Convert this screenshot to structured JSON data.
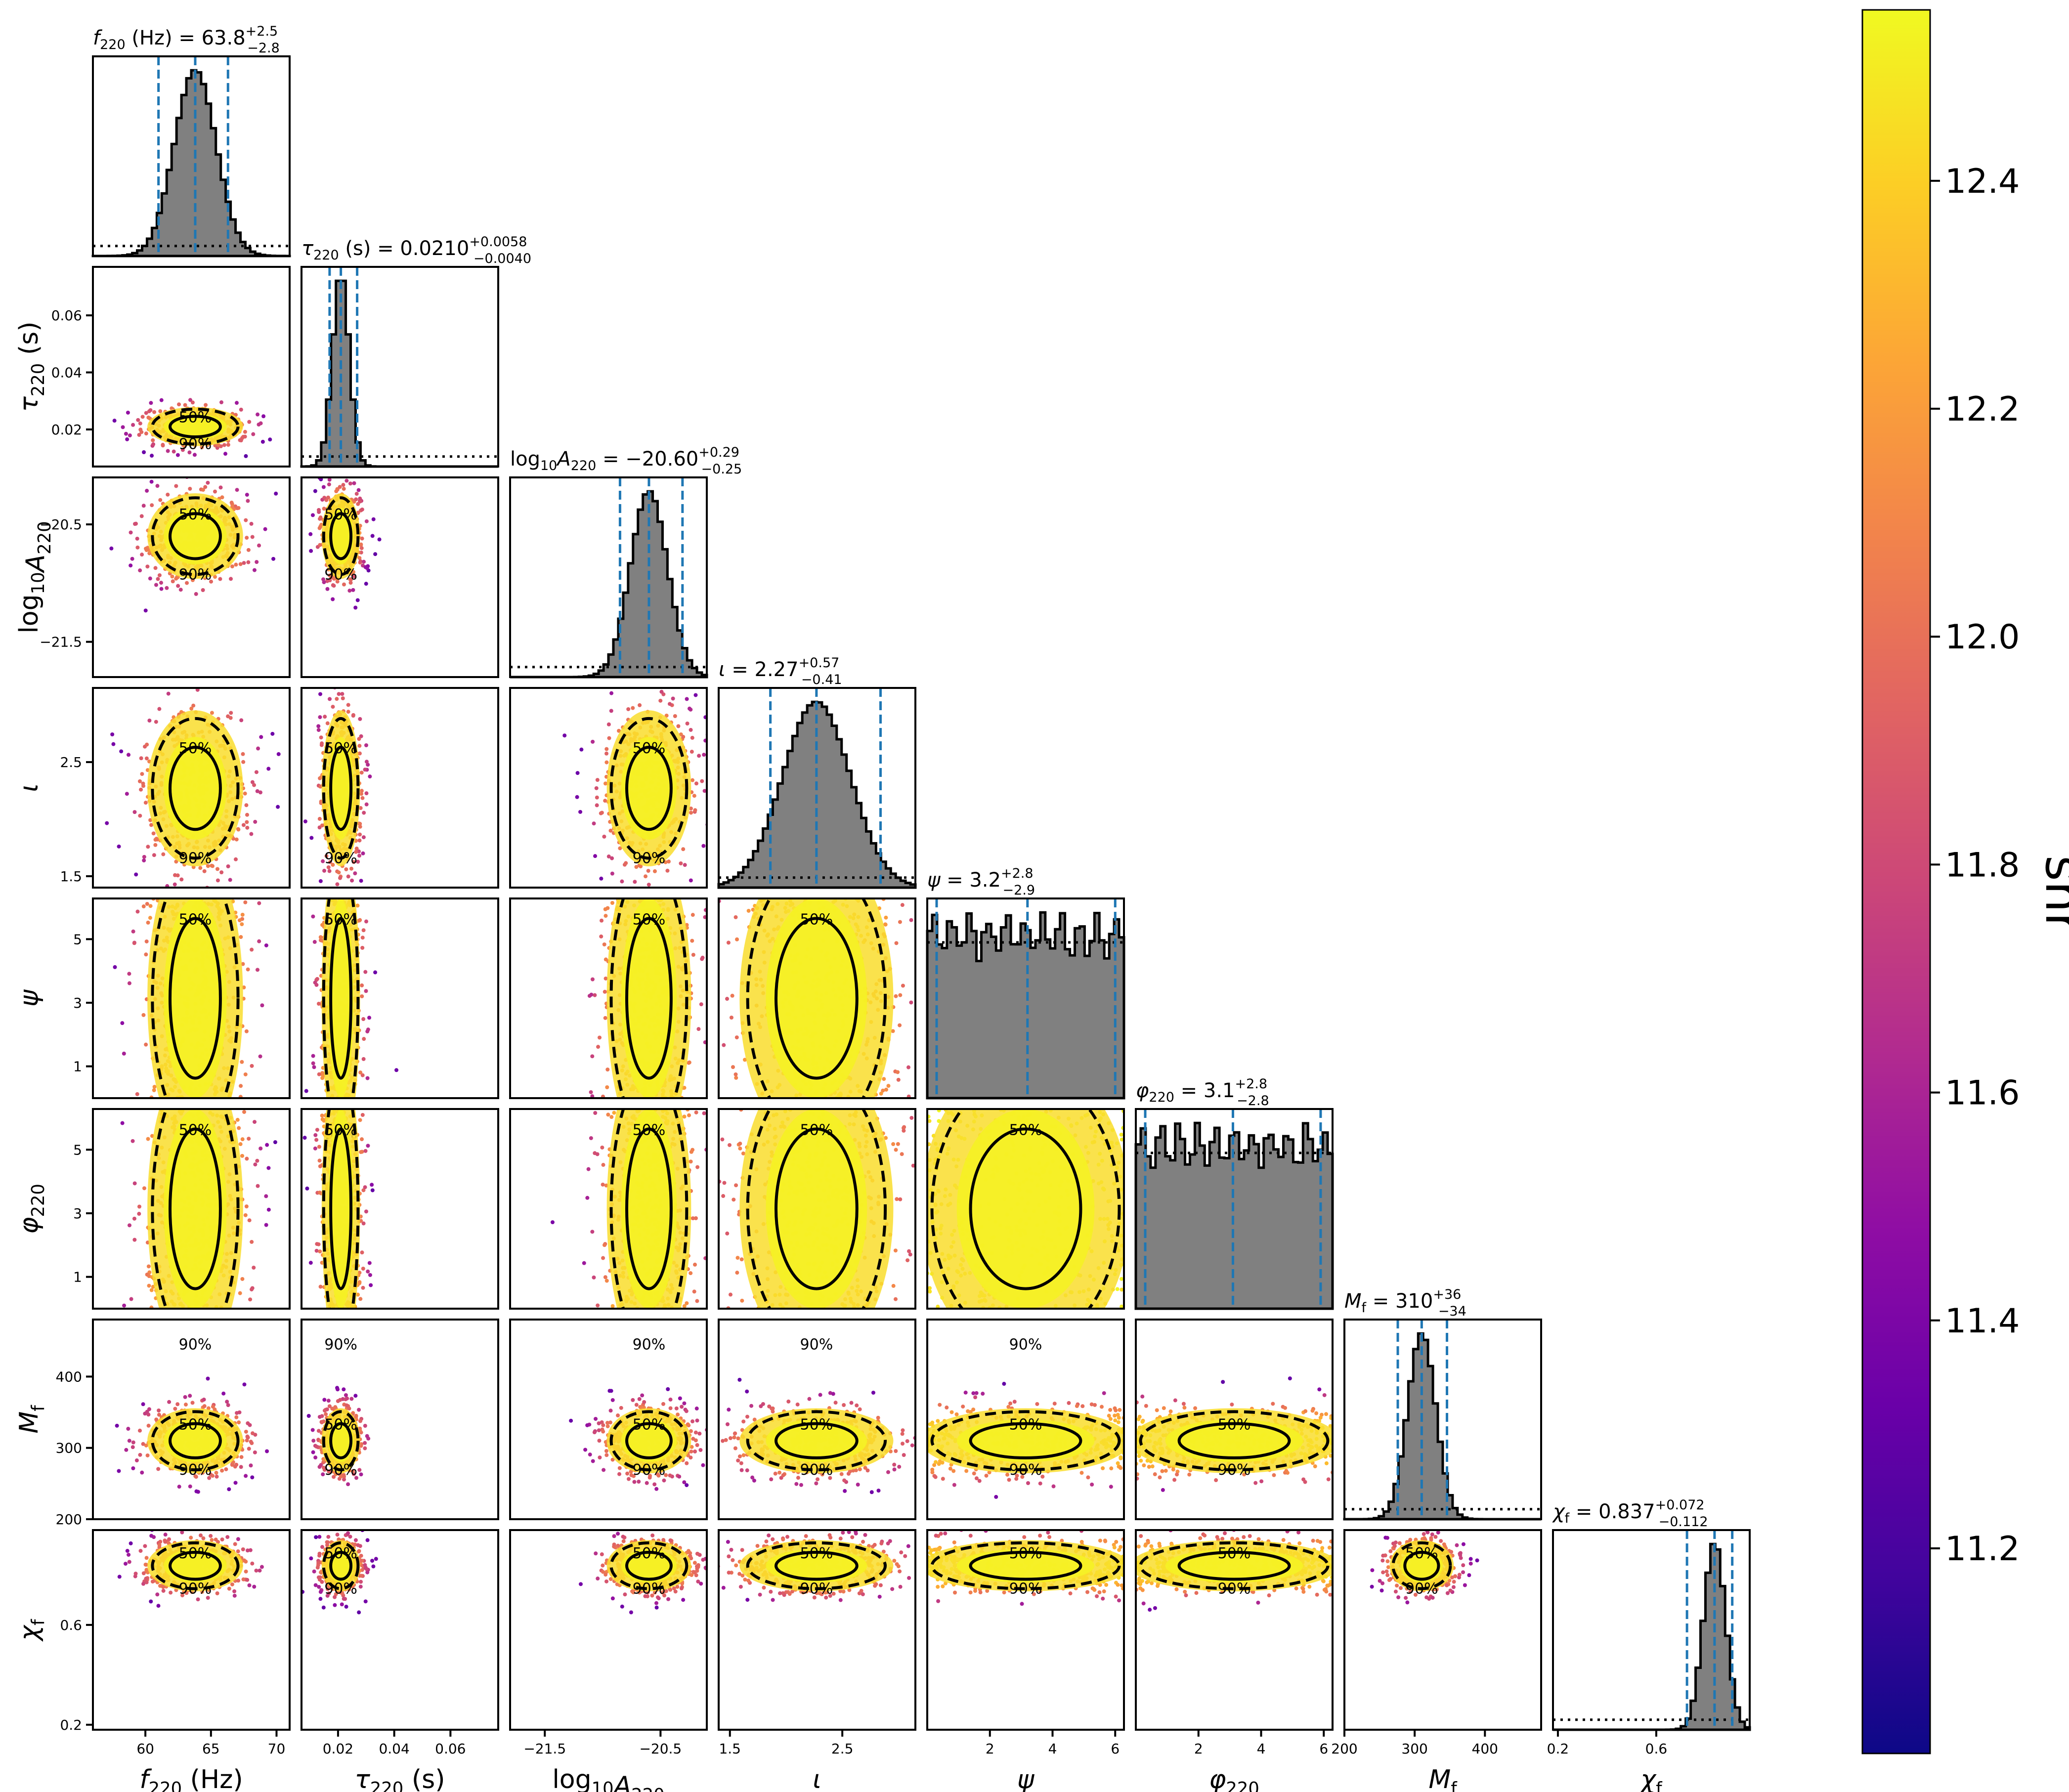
{
  "chart_data": {
    "type": "scatter",
    "subtype": "corner-plot",
    "parameters": [
      {
        "key": "f220",
        "axis_label": "f220 (Hz)",
        "label_main": "f",
        "label_sub": "220",
        "label_suffix": " (Hz)",
        "italic": true,
        "title_prefix": " (Hz) = ",
        "median": "63.8",
        "plus": "+2.5",
        "minus": "−2.8",
        "range": [
          56,
          71
        ],
        "ticks": [
          60,
          65,
          70
        ],
        "ci": [
          61.0,
          63.8,
          66.3
        ],
        "sd": 1.6
      },
      {
        "key": "tau220",
        "axis_label": "τ220 (s)",
        "label_main": "τ",
        "label_sub": "220",
        "label_suffix": " (s)",
        "italic": true,
        "title_prefix": " (s) = ",
        "median": "0.0210",
        "plus": "+0.0058",
        "minus": "−0.0040",
        "range": [
          0.007,
          0.077
        ],
        "ticks": [
          0.02,
          0.04,
          0.06
        ],
        "ci": [
          0.017,
          0.021,
          0.0268
        ],
        "sd": 0.003
      },
      {
        "key": "logA",
        "axis_label": "log10A220",
        "label_main": "log",
        "label_sub": "10",
        "label_suffix": "A220",
        "italic": false,
        "title_prefix": " = ",
        "median": "−20.60",
        "plus": "+0.29",
        "minus": "−0.25",
        "range": [
          -21.8,
          -20.1
        ],
        "ticks": [
          -21.5,
          -20.5
        ],
        "ci": [
          -20.85,
          -20.6,
          -20.31
        ],
        "sd": 0.16
      },
      {
        "key": "iota",
        "axis_label": "ι",
        "label_main": "ι",
        "label_sub": "",
        "label_suffix": "",
        "italic": true,
        "title_prefix": " = ",
        "median": "2.27",
        "plus": "+0.57",
        "minus": "−0.41",
        "range": [
          1.4,
          3.15
        ],
        "ticks": [
          1.5,
          2.5
        ],
        "ci": [
          1.86,
          2.27,
          2.84
        ],
        "sd": 0.3
      },
      {
        "key": "psi",
        "axis_label": "ψ",
        "label_main": "ψ",
        "label_sub": "",
        "label_suffix": "",
        "italic": true,
        "title_prefix": " = ",
        "median": "3.2",
        "plus": "+2.8",
        "minus": "−2.9",
        "range": [
          0,
          6.28
        ],
        "ticks": [
          1,
          3,
          5
        ],
        "xticks": [
          2,
          4,
          6
        ],
        "ci": [
          0.3,
          3.2,
          6.0
        ],
        "sd": 0
      },
      {
        "key": "phi220",
        "axis_label": "φ220",
        "label_main": "φ",
        "label_sub": "220",
        "label_suffix": "",
        "italic": true,
        "title_prefix": " = ",
        "median": "3.1",
        "plus": "+2.8",
        "minus": "−2.8",
        "range": [
          0,
          6.28
        ],
        "ticks": [
          1,
          3,
          5
        ],
        "xticks": [
          2,
          4,
          6
        ],
        "ci": [
          0.3,
          3.1,
          5.9
        ],
        "sd": 0
      },
      {
        "key": "Mf",
        "axis_label": "Mf",
        "label_main": "M",
        "label_sub": "f",
        "label_suffix": "",
        "italic": true,
        "title_prefix": " = ",
        "median": "310",
        "plus": "+36",
        "minus": "−34",
        "range": [
          200,
          480
        ],
        "ticks": [
          200,
          300,
          400
        ],
        "xticks": [
          200,
          300,
          400
        ],
        "ci": [
          276,
          310,
          346
        ],
        "sd": 20
      },
      {
        "key": "chif",
        "axis_label": "χf",
        "label_main": "χ",
        "label_sub": "f",
        "label_suffix": "",
        "italic": true,
        "title_prefix": " = ",
        "median": "0.837",
        "plus": "+0.072",
        "minus": "−0.112",
        "range": [
          0.18,
          0.98
        ],
        "ticks": [
          0.2,
          0.6
        ],
        "ci": [
          0.725,
          0.837,
          0.909
        ],
        "sd": 0.045
      }
    ],
    "contour_labels": [
      "50%",
      "90%"
    ],
    "colorbar": {
      "label": "snr",
      "range": [
        11.02,
        12.55
      ],
      "ticks": [
        "11.2",
        "11.4",
        "11.6",
        "11.8",
        "12.0",
        "12.2",
        "12.4"
      ],
      "tick_values": [
        11.2,
        11.4,
        11.6,
        11.8,
        12.0,
        12.2,
        12.4
      ],
      "colormap": "plasma"
    },
    "colors": {
      "histogram_fill": "#808080",
      "quantile_lines": "#1f77b4",
      "contour": "#000000",
      "prior": "#000000"
    },
    "legend": "none",
    "grid": false
  }
}
